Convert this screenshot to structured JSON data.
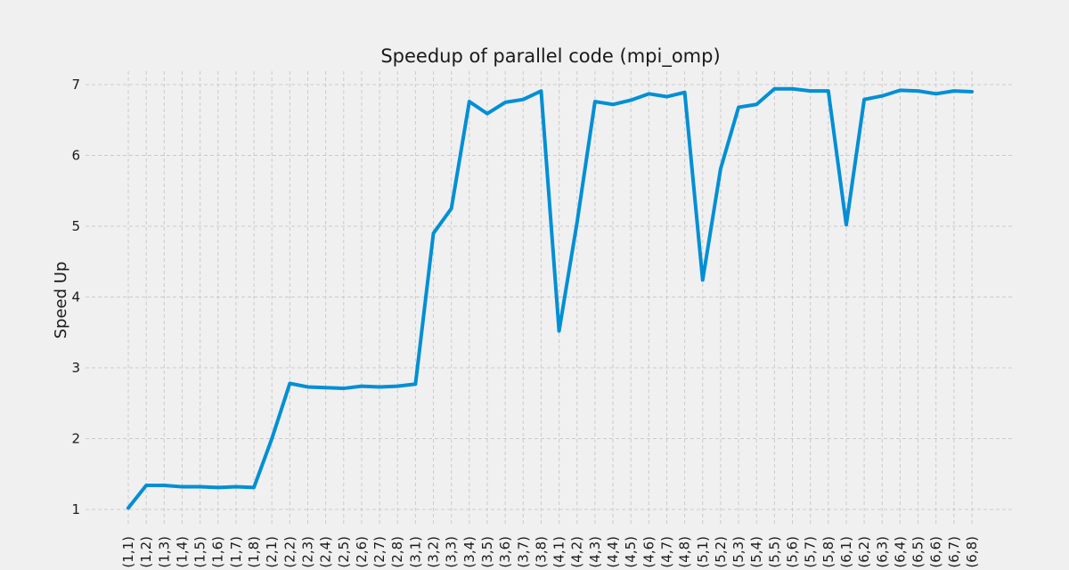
{
  "chart_data": {
    "type": "line",
    "title": "Speedup of parallel code (mpi_omp)",
    "xlabel": "",
    "ylabel": "Speed Up",
    "categories": [
      "(1,1)",
      "(1,2)",
      "(1,3)",
      "(1,4)",
      "(1,5)",
      "(1,6)",
      "(1,7)",
      "(1,8)",
      "(2,1)",
      "(2,2)",
      "(2,3)",
      "(2,4)",
      "(2,5)",
      "(2,6)",
      "(2,7)",
      "(2,8)",
      "(3,1)",
      "(3,2)",
      "(3,3)",
      "(3,4)",
      "(3,5)",
      "(3,6)",
      "(3,7)",
      "(3,8)",
      "(4,1)",
      "(4,2)",
      "(4,3)",
      "(4,4)",
      "(4,5)",
      "(4,6)",
      "(4,7)",
      "(4,8)",
      "(5,1)",
      "(5,2)",
      "(5,3)",
      "(5,4)",
      "(5,5)",
      "(5,6)",
      "(5,7)",
      "(5,8)",
      "(6,1)",
      "(6,2)",
      "(6,3)",
      "(6,4)",
      "(6,5)",
      "(6,6)",
      "(6,7)",
      "(6,8)"
    ],
    "series": [
      {
        "values": [
          1.02,
          1.34,
          1.34,
          1.32,
          1.32,
          1.31,
          1.32,
          1.31,
          2.0,
          2.78,
          2.73,
          2.72,
          2.71,
          2.74,
          2.73,
          2.74,
          2.77,
          4.9,
          5.25,
          6.76,
          6.59,
          6.75,
          6.79,
          6.91,
          3.52,
          5.05,
          6.76,
          6.72,
          6.78,
          6.87,
          6.83,
          6.89,
          4.24,
          5.81,
          6.68,
          6.72,
          6.94,
          6.94,
          6.91,
          6.91,
          5.02,
          6.79,
          6.84,
          6.92,
          6.91,
          6.87,
          6.91,
          6.9
        ],
        "color": "#008fd5"
      }
    ],
    "yticks": [
      1,
      2,
      3,
      4,
      5,
      6,
      7
    ],
    "ylim": [
      0.8,
      7.2
    ],
    "grid": true,
    "legend": "none"
  }
}
